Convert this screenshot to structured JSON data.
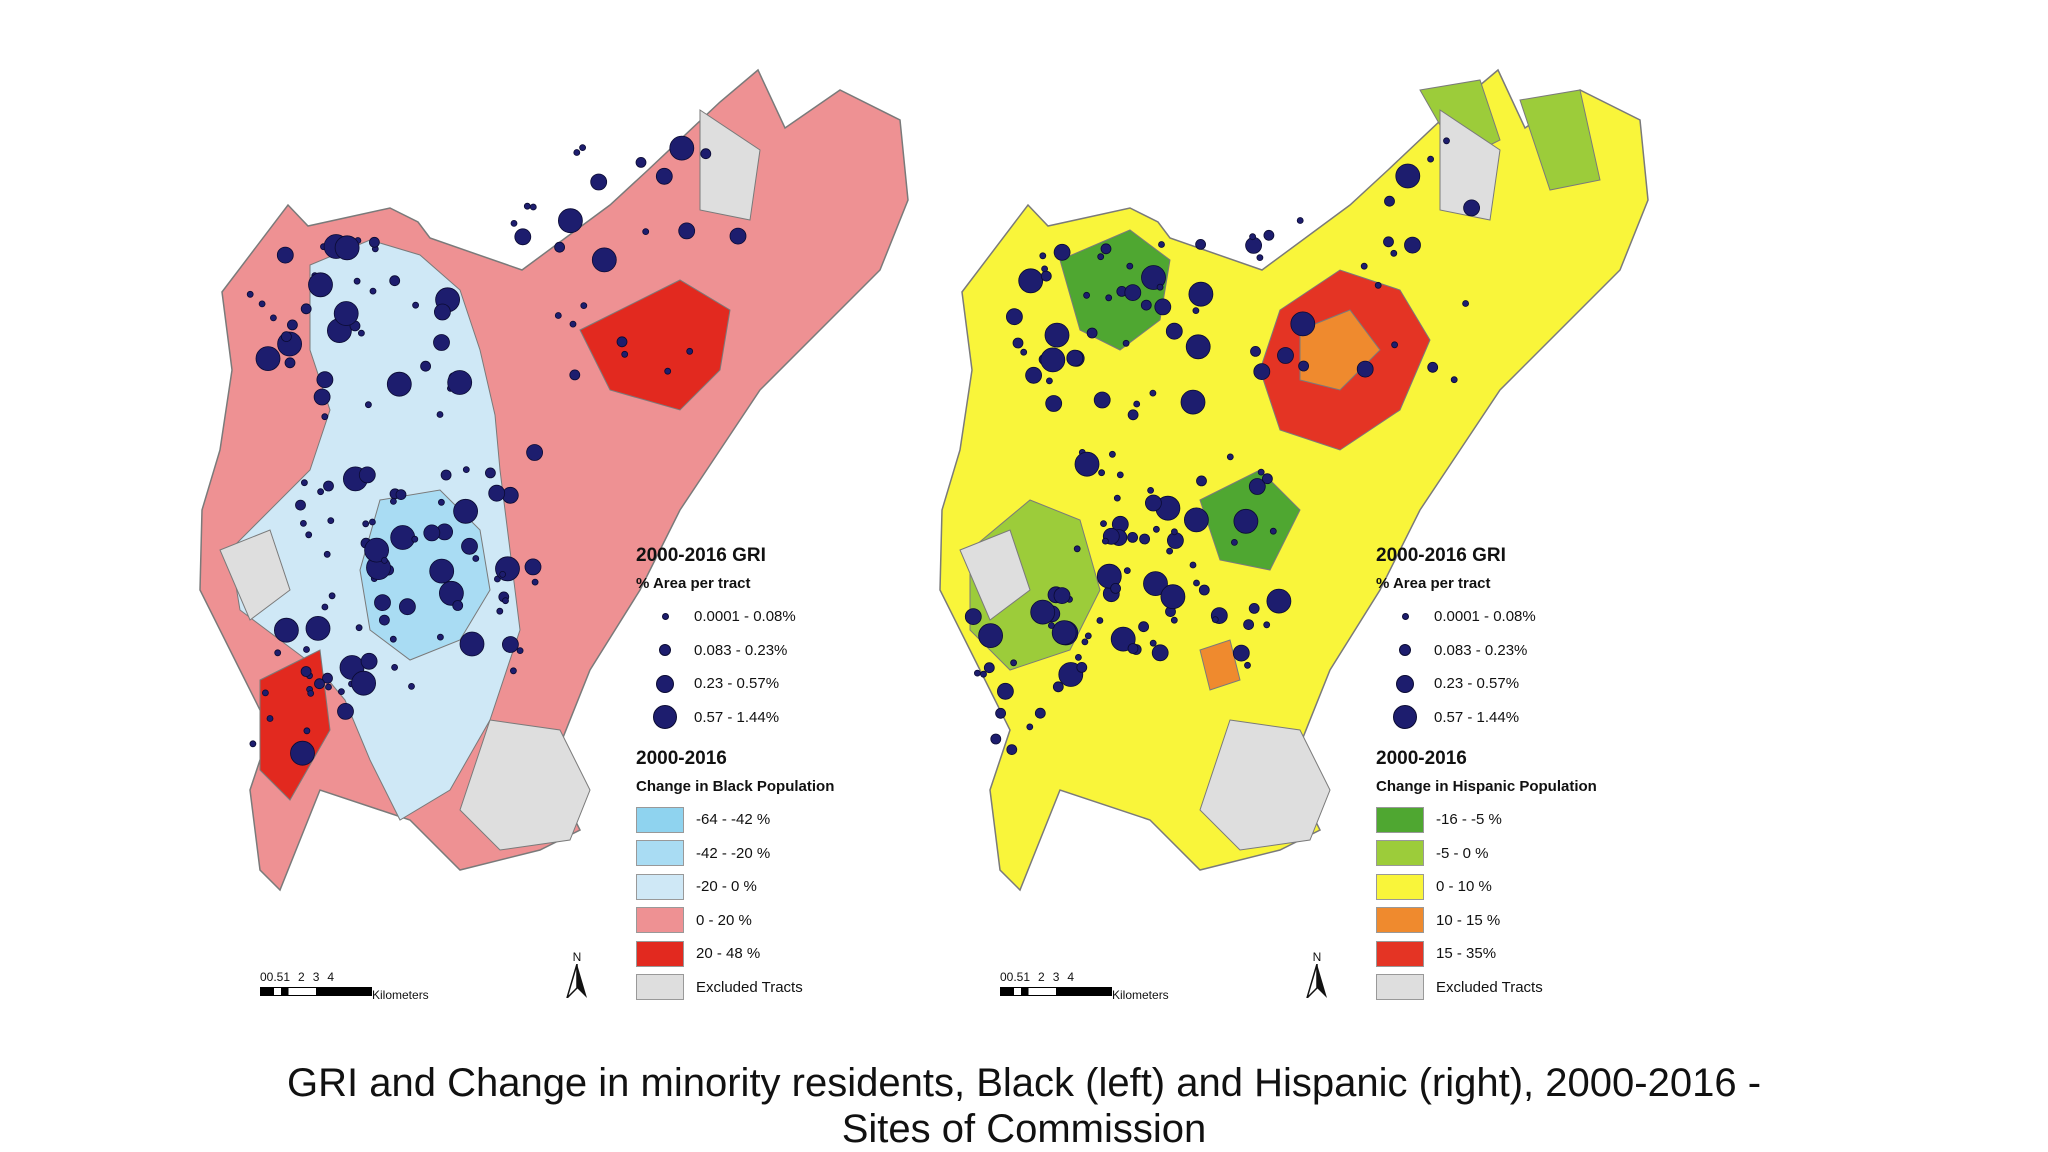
{
  "maps": [
    {
      "id": "black",
      "gri_title": "2000-2016 GRI",
      "gri_subtitle": "% Area per tract",
      "gri_classes": [
        "0.0001 - 0.08%",
        "0.083 - 0.23%",
        "0.23 - 0.57%",
        "0.57 - 1.44%"
      ],
      "change_title": "2000-2016",
      "change_subtitle": "Change in Black Population",
      "change_classes": [
        {
          "label": "-64 - -42 %",
          "color": "#8fd3ef"
        },
        {
          "label": "-42 - -20 %",
          "color": "#a9dcf3"
        },
        {
          "label": "-20 - 0 %",
          "color": "#cfe8f6"
        },
        {
          "label": "0 - 20 %",
          "color": "#ee9193"
        },
        {
          "label": "20 - 48 %",
          "color": "#e2291f"
        },
        {
          "label": "Excluded Tracts",
          "color": "#dedede"
        }
      ],
      "scale_ticks": [
        "00.51",
        "2",
        "3",
        "4"
      ],
      "scale_unit": "Kilometers",
      "north_label": "N"
    },
    {
      "id": "hispanic",
      "gri_title": "2000-2016 GRI",
      "gri_subtitle": "% Area per tract",
      "gri_classes": [
        "0.0001 - 0.08%",
        "0.083 - 0.23%",
        "0.23 - 0.57%",
        "0.57 - 1.44%"
      ],
      "change_title": "2000-2016",
      "change_subtitle": "Change in Hispanic Population",
      "change_classes": [
        {
          "label": "-16 - -5 %",
          "color": "#4fa731"
        },
        {
          "label": "-5 - 0 %",
          "color": "#9ccc3a"
        },
        {
          "label": "0 - 10 %",
          "color": "#f9f53a"
        },
        {
          "label": "10 - 15 %",
          "color": "#ef8a2e"
        },
        {
          "label": "15 - 35%",
          "color": "#e43424"
        },
        {
          "label": "Excluded Tracts",
          "color": "#dedede"
        }
      ],
      "scale_ticks": [
        "00.51",
        "2",
        "3",
        "4"
      ],
      "scale_unit": "Kilometers",
      "north_label": "N"
    }
  ],
  "caption": {
    "line1": "GRI and Change in minority residents, Black (left) and Hispanic (right), 2000-2016 -",
    "line2": "Sites of Commission"
  },
  "colors": {
    "dot": "#1d1d6e",
    "tract_outline": "#7a7a7a"
  }
}
